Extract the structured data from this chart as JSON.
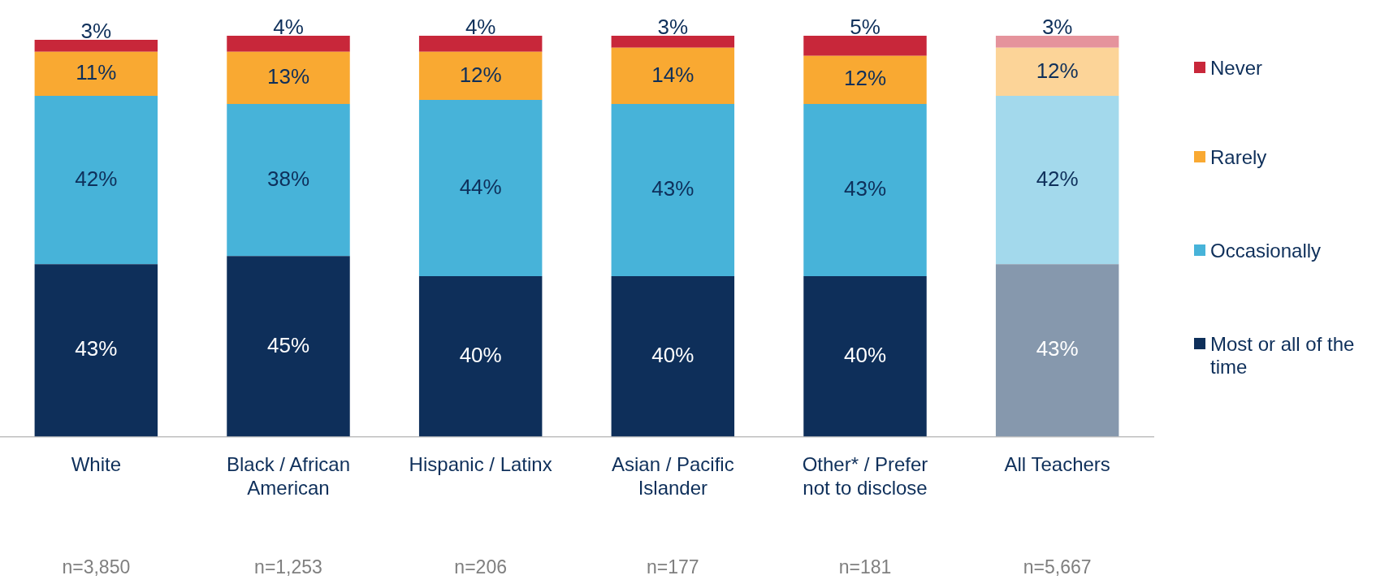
{
  "chart_data": {
    "type": "bar",
    "stacked": true,
    "categories": [
      "White",
      "Black / African American",
      "Hispanic / Latinx",
      "Asian / Pacific Islander",
      "Other* / Prefer not to disclose",
      "All Teachers"
    ],
    "series": [
      {
        "name": "Most or all of the time",
        "color": "#0e2f5a",
        "colors": [
          "#0e2f5a",
          "#0e2f5a",
          "#0e2f5a",
          "#0e2f5a",
          "#0e2f5a",
          "#8698ad"
        ],
        "values": [
          43,
          45,
          40,
          40,
          40,
          43
        ],
        "value_labels": [
          "43%",
          "45%",
          "40%",
          "40%",
          "40%",
          "43%"
        ]
      },
      {
        "name": "Occasionally",
        "color": "#47b3d9",
        "colors": [
          "#47b3d9",
          "#47b3d9",
          "#47b3d9",
          "#47b3d9",
          "#47b3d9",
          "#a3d9ec"
        ],
        "values": [
          42,
          38,
          44,
          43,
          43,
          42
        ],
        "value_labels": [
          "42%",
          "38%",
          "44%",
          "43%",
          "43%",
          "42%"
        ]
      },
      {
        "name": "Rarely",
        "color": "#f9a932",
        "colors": [
          "#f9a932",
          "#f9a932",
          "#f9a932",
          "#f9a932",
          "#f9a932",
          "#fcd498"
        ],
        "values": [
          11,
          13,
          12,
          14,
          12,
          12
        ],
        "value_labels": [
          "11%",
          "13%",
          "12%",
          "14%",
          "12%",
          "12%"
        ]
      },
      {
        "name": "Never",
        "color": "#c8273a",
        "colors": [
          "#c8273a",
          "#c8273a",
          "#c8273a",
          "#c8273a",
          "#c8273a",
          "#e5939c"
        ],
        "values": [
          3,
          4,
          4,
          3,
          5,
          3
        ],
        "value_labels": [
          "3%",
          "4%",
          "4%",
          "3%",
          "5%",
          "3%"
        ]
      }
    ],
    "legend": "right",
    "grid": false,
    "tick_labels": "x",
    "annotations": [
      "n=3,850",
      "n=1,253",
      "n=206",
      "n=177",
      "n=181",
      "n=5,667"
    ]
  }
}
